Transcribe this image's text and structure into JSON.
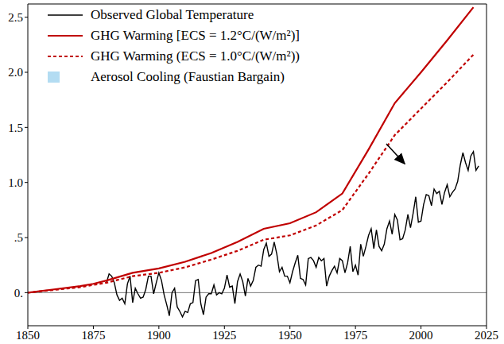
{
  "chart_data": {
    "type": "line",
    "xlim": [
      1850,
      2025
    ],
    "xticks": [
      1850,
      1875,
      1900,
      1925,
      1950,
      1975,
      2000,
      2025
    ],
    "ylim": [
      -0.3,
      2.62
    ],
    "yticks": [
      {
        "value": 0,
        "label": "0."
      },
      {
        "value": 0.5,
        "label": ".5"
      },
      {
        "value": 1,
        "label": "1.0"
      },
      {
        "value": 1.5,
        "label": "1.5"
      },
      {
        "value": 2,
        "label": "2.0"
      },
      {
        "value": 2.5,
        "label": "2.5"
      }
    ],
    "legend": "upper left",
    "series": [
      {
        "name": "Observed Global Temperature",
        "color": "#000000",
        "type": "line",
        "line_style": "solid",
        "x": [
          1880,
          1881,
          1882,
          1883,
          1884,
          1885,
          1886,
          1887,
          1888,
          1889,
          1890,
          1891,
          1892,
          1893,
          1894,
          1895,
          1896,
          1897,
          1898,
          1899,
          1900,
          1901,
          1902,
          1903,
          1904,
          1905,
          1906,
          1907,
          1908,
          1909,
          1910,
          1911,
          1912,
          1913,
          1914,
          1915,
          1916,
          1917,
          1918,
          1919,
          1920,
          1921,
          1922,
          1923,
          1924,
          1925,
          1926,
          1927,
          1928,
          1929,
          1930,
          1931,
          1932,
          1933,
          1934,
          1935,
          1936,
          1937,
          1938,
          1939,
          1940,
          1941,
          1942,
          1943,
          1944,
          1945,
          1946,
          1947,
          1948,
          1949,
          1950,
          1951,
          1952,
          1953,
          1954,
          1955,
          1956,
          1957,
          1958,
          1959,
          1960,
          1961,
          1962,
          1963,
          1964,
          1965,
          1966,
          1967,
          1968,
          1969,
          1970,
          1971,
          1972,
          1973,
          1974,
          1975,
          1976,
          1977,
          1978,
          1979,
          1980,
          1981,
          1982,
          1983,
          1984,
          1985,
          1986,
          1987,
          1988,
          1989,
          1990,
          1991,
          1992,
          1993,
          1994,
          1995,
          1996,
          1997,
          1998,
          1999,
          2000,
          2001,
          2002,
          2003,
          2004,
          2005,
          2006,
          2007,
          2008,
          2009,
          2010,
          2011,
          2012,
          2013,
          2014,
          2015,
          2016,
          2017,
          2018,
          2019,
          2020,
          2021,
          2022
        ],
        "values": [
          0.09,
          0.17,
          0.15,
          0.09,
          -0.02,
          -0.07,
          -0.05,
          -0.1,
          0.08,
          0.15,
          -0.09,
          0.04,
          -0.01,
          -0.05,
          -0.04,
          0.03,
          0.15,
          0.15,
          -0.01,
          0.09,
          0.18,
          0.11,
          -0.02,
          -0.11,
          -0.21,
          0.0,
          0.04,
          -0.13,
          -0.17,
          -0.22,
          -0.17,
          -0.18,
          -0.1,
          -0.09,
          0.11,
          0.12,
          -0.1,
          -0.2,
          -0.04,
          -0.01,
          -0.01,
          0.07,
          -0.02,
          0.0,
          -0.01,
          0.04,
          0.16,
          0.05,
          0.06,
          -0.1,
          0.1,
          0.17,
          0.1,
          -0.03,
          0.13,
          0.06,
          0.11,
          0.23,
          0.25,
          0.24,
          0.39,
          0.45,
          0.33,
          0.35,
          0.46,
          0.35,
          0.19,
          0.23,
          0.15,
          0.15,
          0.09,
          0.19,
          0.27,
          0.34,
          0.13,
          0.12,
          0.07,
          0.31,
          0.32,
          0.29,
          0.23,
          0.32,
          0.29,
          0.31,
          0.06,
          0.15,
          0.2,
          0.24,
          0.18,
          0.31,
          0.29,
          0.18,
          0.27,
          0.42,
          0.19,
          0.25,
          0.16,
          0.44,
          0.33,
          0.42,
          0.52,
          0.58,
          0.4,
          0.57,
          0.42,
          0.38,
          0.44,
          0.58,
          0.65,
          0.53,
          0.71,
          0.66,
          0.48,
          0.49,
          0.57,
          0.71,
          0.59,
          0.72,
          0.87,
          0.64,
          0.65,
          0.8,
          0.89,
          0.88,
          0.79,
          0.94,
          0.9,
          0.92,
          0.8,
          0.91,
          0.98,
          0.87,
          0.91,
          0.94,
          1.01,
          1.16,
          1.27,
          1.18,
          1.11,
          1.24,
          1.28,
          1.11,
          1.15
        ]
      },
      {
        "name": "GHG Warming [ECS = 1.2°C/(W/m²)]",
        "color": "#c00000",
        "type": "line",
        "line_style": "solid",
        "x": [
          1850,
          1860,
          1870,
          1875,
          1880,
          1890,
          1900,
          1910,
          1920,
          1930,
          1940,
          1950,
          1960,
          1970,
          1980,
          1990,
          2000,
          2010,
          2020
        ],
        "values": [
          0,
          0.03,
          0.06,
          0.08,
          0.11,
          0.18,
          0.22,
          0.28,
          0.36,
          0.46,
          0.58,
          0.63,
          0.73,
          0.9,
          1.3,
          1.72,
          2.0,
          2.29,
          2.59
        ]
      },
      {
        "name": "GHG Warming (ECS = 1.0°C/(W/m²))",
        "color": "#c00000",
        "type": "line",
        "line_style": "dotted",
        "x": [
          1850,
          1860,
          1870,
          1875,
          1880,
          1890,
          1900,
          1910,
          1920,
          1930,
          1940,
          1950,
          1960,
          1970,
          1980,
          1990,
          2000,
          2010,
          2020
        ],
        "values": [
          0,
          0.025,
          0.05,
          0.07,
          0.09,
          0.15,
          0.18,
          0.23,
          0.3,
          0.38,
          0.48,
          0.52,
          0.61,
          0.75,
          1.08,
          1.43,
          1.67,
          1.91,
          2.16
        ]
      },
      {
        "name": "Aerosol Cooling (Faustian Bargain)",
        "color": "#b3dcf2",
        "type": "area"
      }
    ]
  }
}
